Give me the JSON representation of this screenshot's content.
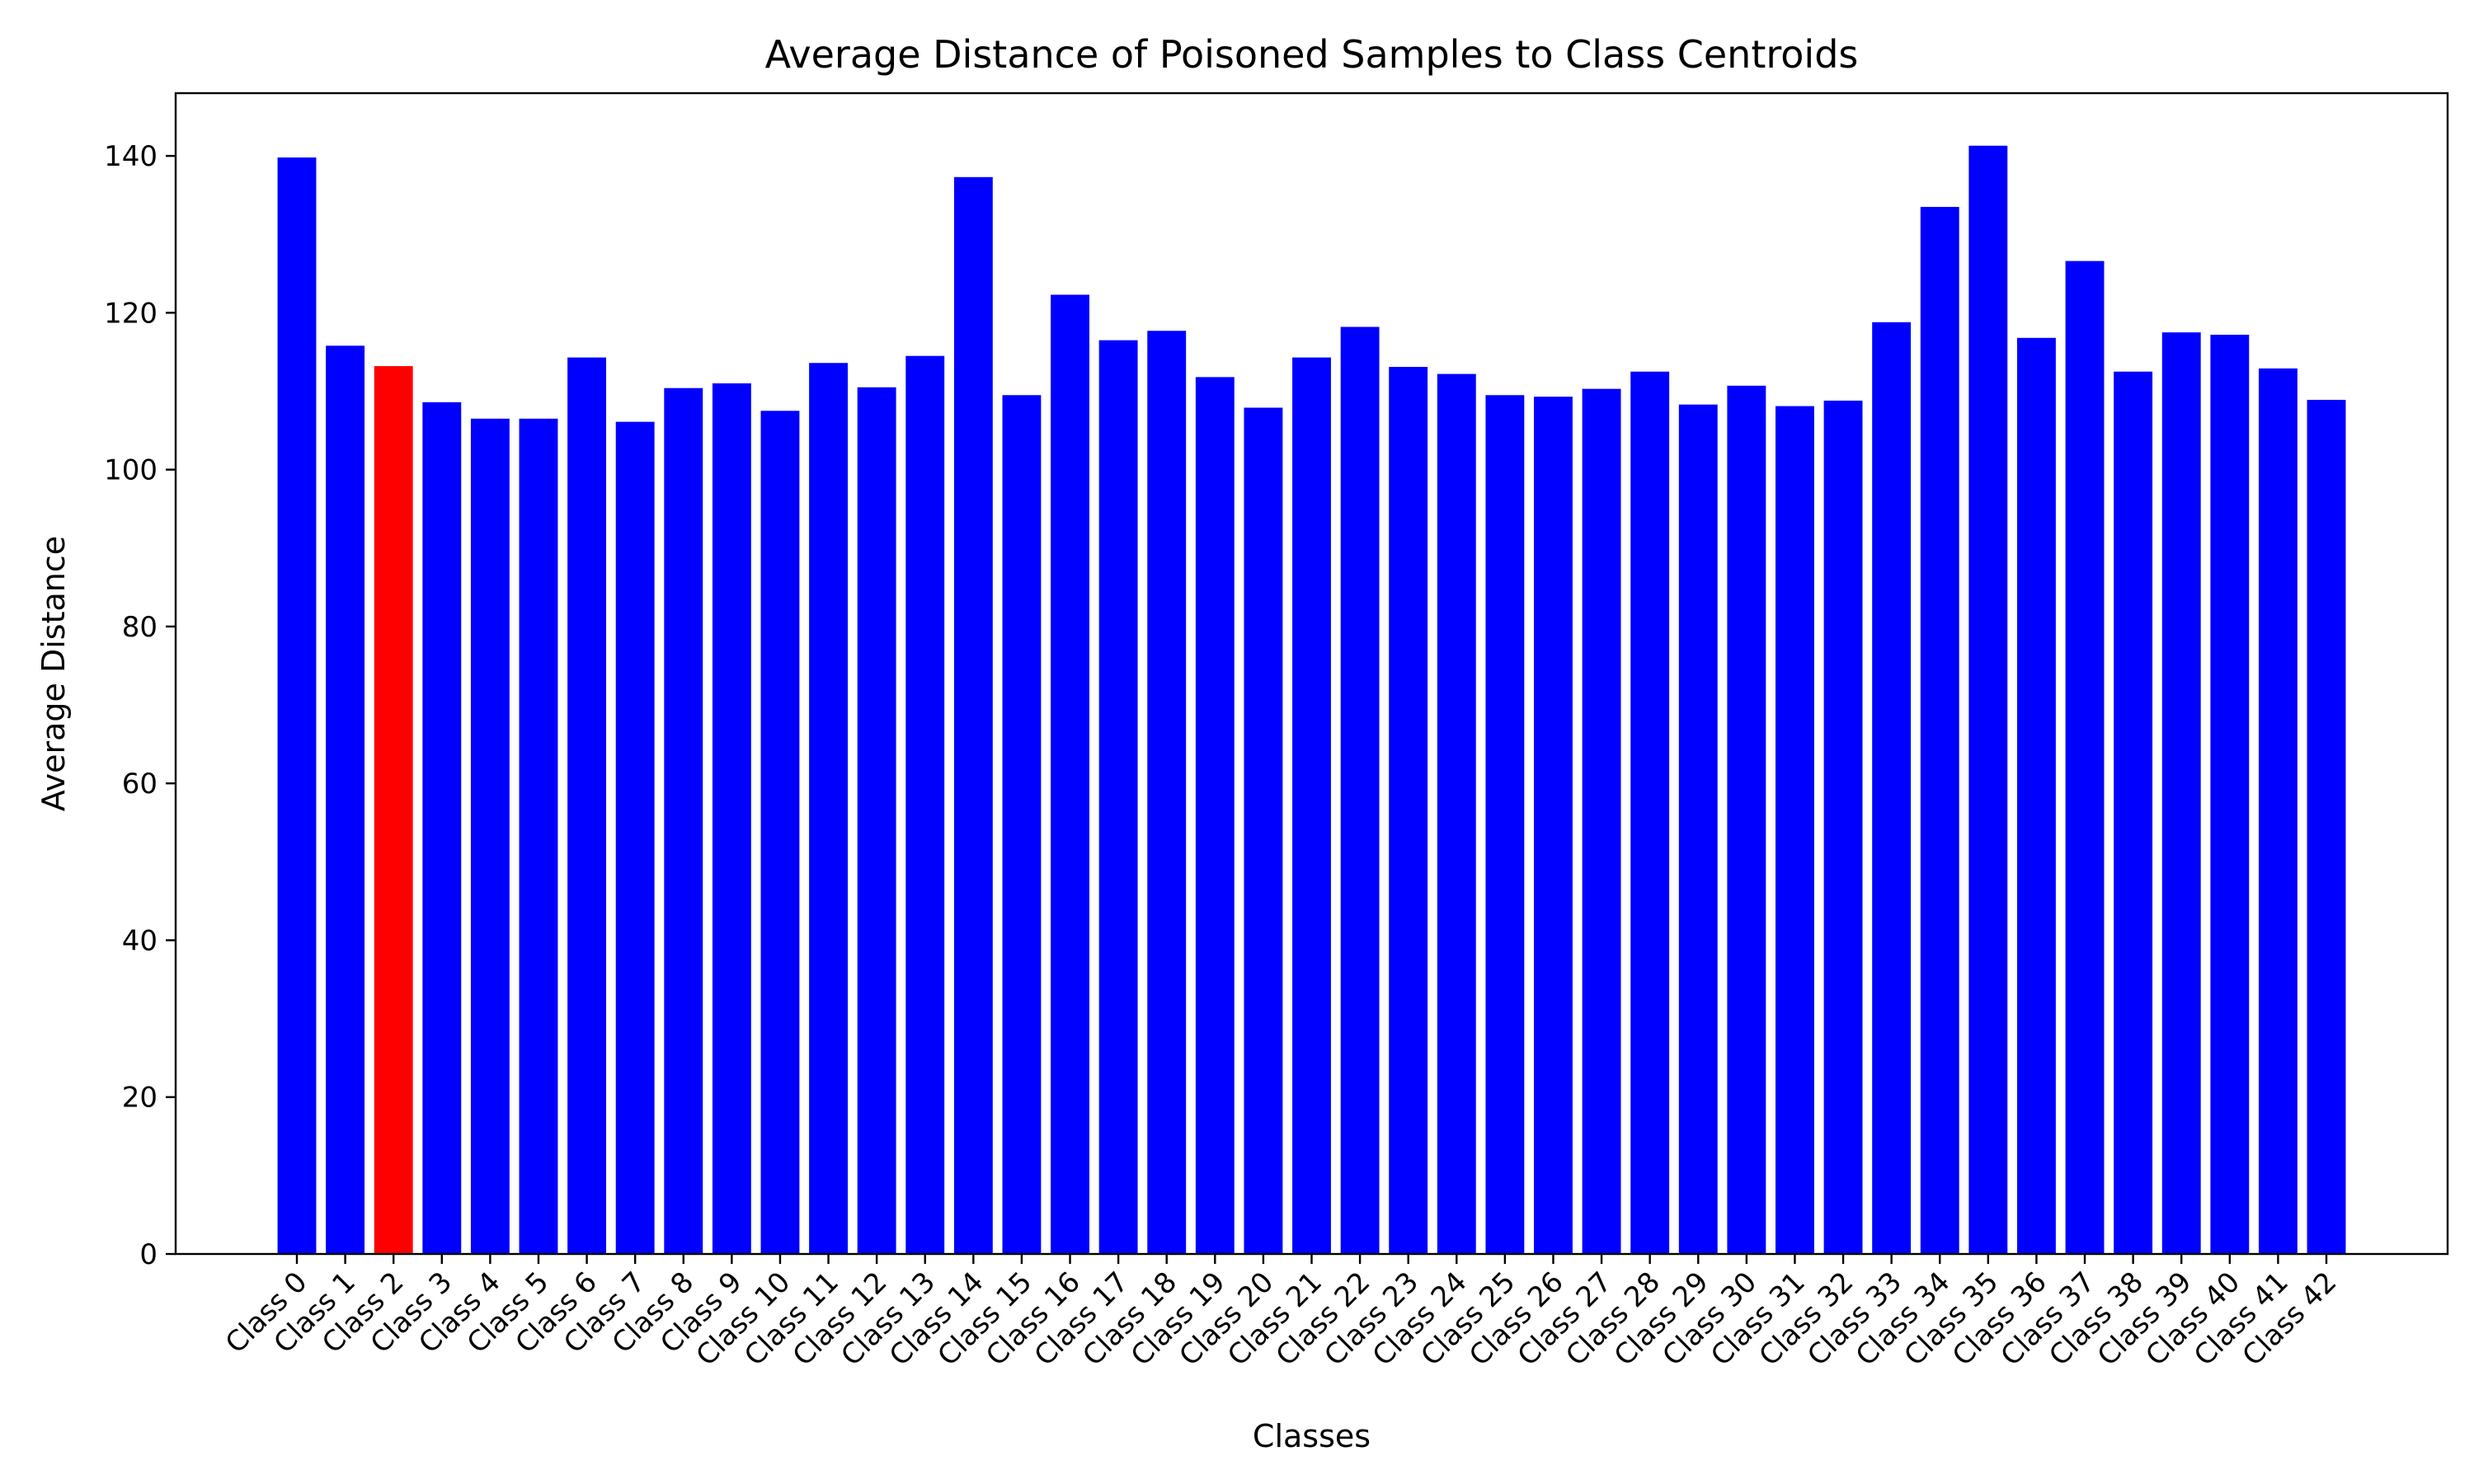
{
  "chart_data": {
    "type": "bar",
    "title": "Average Distance of Poisoned Samples to Class Centroids",
    "xlabel": "Classes",
    "ylabel": "Average Distance",
    "ylim": [
      0,
      148
    ],
    "yticks": [
      0,
      20,
      40,
      60,
      80,
      100,
      120,
      140
    ],
    "grid": false,
    "categories": [
      "Class 0",
      "Class 1",
      "Class 2",
      "Class 3",
      "Class 4",
      "Class 5",
      "Class 6",
      "Class 7",
      "Class 8",
      "Class 9",
      "Class 10",
      "Class 11",
      "Class 12",
      "Class 13",
      "Class 14",
      "Class 15",
      "Class 16",
      "Class 17",
      "Class 18",
      "Class 19",
      "Class 20",
      "Class 21",
      "Class 22",
      "Class 23",
      "Class 24",
      "Class 25",
      "Class 26",
      "Class 27",
      "Class 28",
      "Class 29",
      "Class 30",
      "Class 31",
      "Class 32",
      "Class 33",
      "Class 34",
      "Class 35",
      "Class 36",
      "Class 37",
      "Class 38",
      "Class 39",
      "Class 40",
      "Class 41",
      "Class 42"
    ],
    "values": [
      139.8,
      115.8,
      113.2,
      108.6,
      106.5,
      106.5,
      114.3,
      106.1,
      110.4,
      111.0,
      107.5,
      113.6,
      110.5,
      114.5,
      137.3,
      109.5,
      122.3,
      116.5,
      117.7,
      111.8,
      107.9,
      114.3,
      118.2,
      113.1,
      112.2,
      109.5,
      109.3,
      110.3,
      112.5,
      108.3,
      110.7,
      108.1,
      108.8,
      118.8,
      133.5,
      141.3,
      116.8,
      126.6,
      112.5,
      117.5,
      117.2,
      112.9,
      108.9
    ],
    "colors": {
      "default": "#0000ff",
      "highlight": "#ff0000"
    },
    "highlight_index": 2
  }
}
